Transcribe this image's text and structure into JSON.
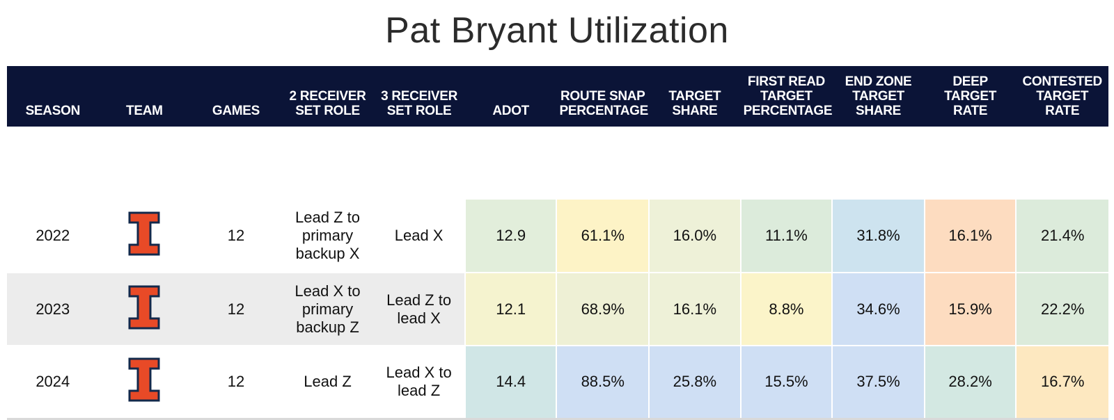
{
  "title": "Pat Bryant Utilization",
  "columns": [
    "SEASON",
    "TEAM",
    "GAMES",
    "2 RECEIVER SET ROLE",
    "3 RECEIVER SET ROLE",
    "ADOT",
    "ROUTE SNAP PERCENTAGE",
    "TARGET SHARE",
    "FIRST READ TARGET PERCENTAGE",
    "END ZONE TARGET SHARE",
    "DEEP TARGET RATE",
    "CONTESTED TARGET RATE"
  ],
  "team_logo": {
    "icon": "illinois-block-i-icon",
    "fill": "#e84a27",
    "stroke": "#13294b"
  },
  "rows": [
    {
      "season": "2022",
      "games": "12",
      "role2": "Lead Z to primary backup X",
      "role3": "Lead X",
      "metrics": [
        "12.9",
        "61.1%",
        "16.0%",
        "11.1%",
        "31.8%",
        "16.1%",
        "21.4%"
      ],
      "colors": [
        "#e2eedb",
        "#fdf3c6",
        "#eef1d8",
        "#dcebdb",
        "#cde3ef",
        "#fddcc0",
        "#dcebdb"
      ]
    },
    {
      "season": "2023",
      "games": "12",
      "role2": "Lead X to primary backup Z",
      "role3": "Lead Z to lead X",
      "metrics": [
        "12.1",
        "68.9%",
        "16.1%",
        "8.8%",
        "34.6%",
        "15.9%",
        "22.2%"
      ],
      "colors": [
        "#f5f3cf",
        "#eef0d5",
        "#eef1d8",
        "#fbf4c9",
        "#cfdff4",
        "#fddcc0",
        "#dcebdb"
      ]
    },
    {
      "season": "2024",
      "games": "12",
      "role2": "Lead Z",
      "role3": "Lead X to lead Z",
      "metrics": [
        "14.4",
        "88.5%",
        "25.8%",
        "15.5%",
        "37.5%",
        "28.2%",
        "16.7%"
      ],
      "colors": [
        "#d0e6e6",
        "#cfdff4",
        "#cfdff4",
        "#cfdff4",
        "#cfdff4",
        "#d3e8e2",
        "#fde8c0"
      ]
    }
  ]
}
